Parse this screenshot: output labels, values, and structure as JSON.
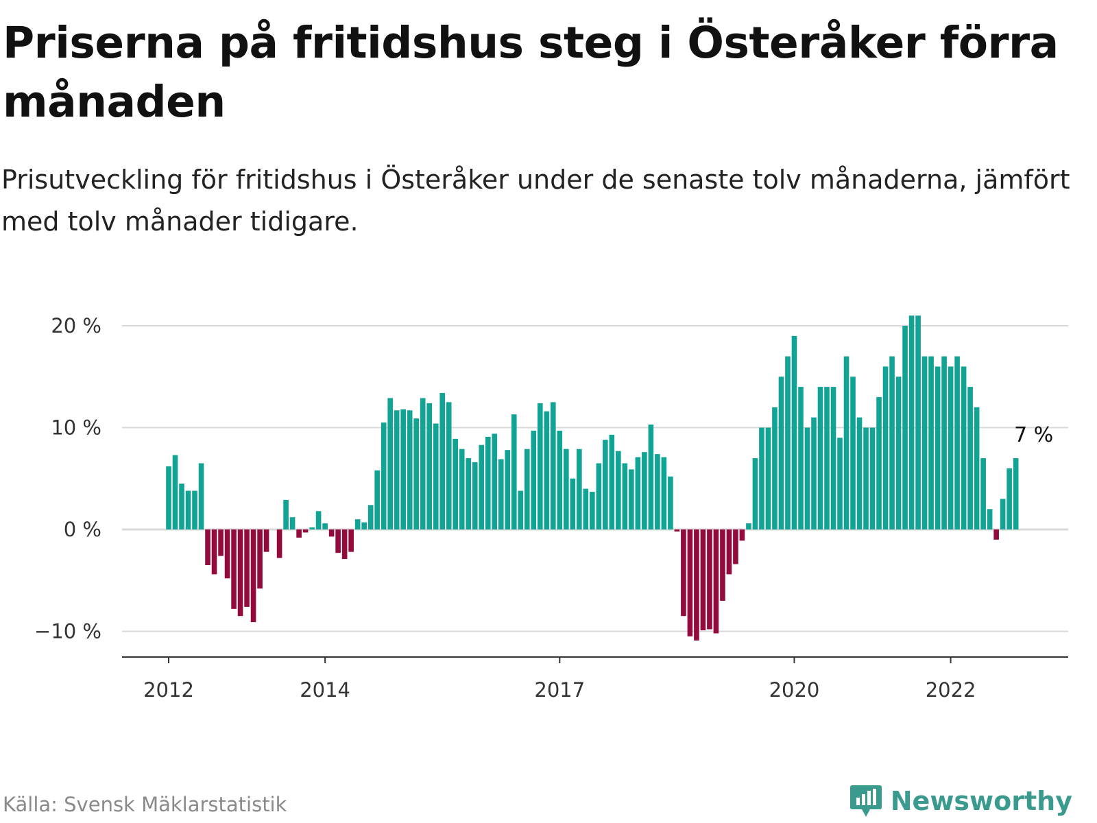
{
  "title": "Priserna på fritidshus steg i Österåker förra månaden",
  "subtitle": "Prisutveckling för fritidshus i Österåker under de senaste tolv månaderna, jämfört med tolv månader tidigare.",
  "source": "Källa: Svensk Mäklarstatistik",
  "brand": {
    "name": "Newsworthy",
    "icon": "newsworthy-logo-icon"
  },
  "colors": {
    "positive": "#11a394",
    "negative": "#930a3c",
    "grid": "#d9d9d9",
    "axis": "#333333",
    "brand": "#3a9a8e"
  },
  "chart_data": {
    "type": "bar",
    "title": "Priserna på fritidshus steg i Österåker förra månaden",
    "subtitle": "Prisutveckling för fritidshus i Österåker under de senaste tolv månaderna, jämfört med tolv månader tidigare.",
    "xlabel": "",
    "ylabel": "",
    "unit": "%",
    "ylim": [
      -12,
      21
    ],
    "grid": true,
    "legend": "none",
    "start_period": "2012-01",
    "y_ticks": [
      {
        "value": -10,
        "label": "−10 %"
      },
      {
        "value": 0,
        "label": "0 %"
      },
      {
        "value": 10,
        "label": "10 %"
      },
      {
        "value": 20,
        "label": "20 %"
      }
    ],
    "x_ticks": [
      {
        "period": "2012-01",
        "label": "2012"
      },
      {
        "period": "2014-01",
        "label": "2014"
      },
      {
        "period": "2017-01",
        "label": "2017"
      },
      {
        "period": "2020-01",
        "label": "2020"
      },
      {
        "period": "2022-01",
        "label": "2022"
      }
    ],
    "end_label": {
      "text": "7 %"
    },
    "values": [
      6.2,
      7.3,
      4.5,
      3.8,
      3.8,
      6.5,
      -3.5,
      -4.4,
      -2.6,
      -4.8,
      -7.8,
      -8.5,
      -7.6,
      -9.1,
      -5.8,
      -2.2,
      0,
      -2.8,
      2.9,
      1.2,
      -0.8,
      -0.3,
      0.2,
      1.8,
      0.6,
      -0.7,
      -2.3,
      -2.9,
      -2.2,
      1.0,
      0.7,
      2.4,
      5.8,
      10.5,
      12.9,
      11.7,
      11.8,
      11.7,
      10.9,
      12.9,
      12.4,
      10.4,
      13.4,
      12.5,
      8.9,
      7.9,
      7.0,
      6.6,
      8.3,
      9.1,
      9.4,
      6.9,
      7.8,
      11.3,
      3.8,
      7.9,
      9.7,
      12.4,
      11.6,
      12.5,
      9.7,
      7.9,
      5.0,
      7.9,
      4.0,
      3.7,
      6.5,
      8.8,
      9.3,
      7.7,
      6.5,
      5.9,
      7.1,
      7.6,
      10.3,
      7.4,
      7.1,
      5.2,
      -0.2,
      -8.5,
      -10.5,
      -10.9,
      -9.9,
      -9.8,
      -10.2,
      -7.0,
      -4.4,
      -3.4,
      -1.1,
      0.6,
      7.0,
      10.0,
      10.0,
      12.0,
      15.0,
      17.0,
      19.0,
      14.0,
      10.0,
      11.0,
      14.0,
      14.0,
      14.0,
      9.0,
      17.0,
      15.0,
      11.0,
      10.0,
      10.0,
      13.0,
      16.0,
      17.0,
      15.0,
      20.0,
      21.0,
      21.0,
      17.0,
      17.0,
      16.0,
      17.0,
      16.0,
      17.0,
      16.0,
      14.0,
      12.0,
      7.0,
      2.0,
      -1.0,
      3.0,
      6.0,
      7.0
    ]
  }
}
